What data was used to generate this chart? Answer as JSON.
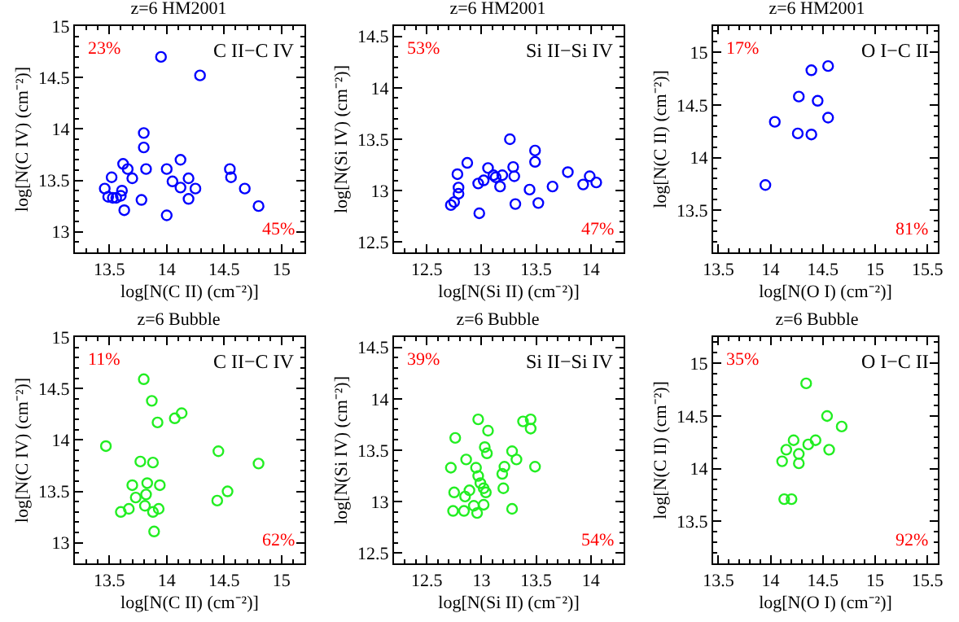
{
  "chart_data": [
    {
      "type": "scatter",
      "title": "z=6 HM2001",
      "xlabel": "log[N(C II) (cm⁻²)]",
      "ylabel": "log[N(C IV) (cm⁻²)]",
      "annotations": [
        "23%",
        "C II−C IV",
        "45%"
      ],
      "xlim": [
        13.2,
        15.2
      ],
      "ylim": [
        12.8,
        15
      ],
      "xticks": [
        13.5,
        14,
        14.5,
        15
      ],
      "yticks": [
        13,
        13.5,
        14,
        14.5,
        15
      ],
      "marker": "circle",
      "series": [
        {
          "color": "#0000ff",
          "x": [
            13.46,
            13.49,
            13.52,
            13.53,
            13.56,
            13.6,
            13.61,
            13.62,
            13.63,
            13.66,
            13.7,
            13.78,
            13.8,
            13.8,
            13.82,
            13.95,
            14.0,
            14.0,
            14.05,
            14.12,
            14.12,
            14.19,
            14.19,
            14.25,
            14.29,
            14.55,
            14.56,
            14.68,
            14.8
          ],
          "values": [
            13.42,
            13.34,
            13.53,
            13.33,
            13.33,
            13.35,
            13.4,
            13.66,
            13.21,
            13.61,
            13.52,
            13.31,
            13.96,
            13.82,
            13.61,
            14.7,
            13.61,
            13.16,
            13.49,
            13.7,
            13.43,
            13.52,
            13.32,
            13.42,
            14.52,
            13.61,
            13.53,
            13.42,
            13.25
          ]
        }
      ]
    },
    {
      "type": "scatter",
      "title": "z=6 HM2001",
      "xlabel": "log[N(Si II) (cm⁻²)]",
      "ylabel": "log[N(Si IV) (cm⁻²)]",
      "annotations": [
        "53%",
        "Si II−Si IV",
        "47%"
      ],
      "xlim": [
        12.2,
        14.3
      ],
      "ylim": [
        12.4,
        14.6
      ],
      "xticks": [
        12.5,
        13,
        13.5,
        14
      ],
      "yticks": [
        12.5,
        13,
        13.5,
        14,
        14.5
      ],
      "marker": "circle",
      "series": [
        {
          "color": "#0000ff",
          "x": [
            12.72,
            12.75,
            12.78,
            12.79,
            12.79,
            12.87,
            12.97,
            12.98,
            13.02,
            13.06,
            13.11,
            13.13,
            13.17,
            13.19,
            13.26,
            13.29,
            13.3,
            13.31,
            13.44,
            13.49,
            13.49,
            13.52,
            13.65,
            13.79,
            13.93,
            13.99,
            14.05
          ],
          "values": [
            12.86,
            12.89,
            13.16,
            13.03,
            12.97,
            13.27,
            13.07,
            12.78,
            13.1,
            13.22,
            13.15,
            13.13,
            13.04,
            13.15,
            13.5,
            13.23,
            13.14,
            12.87,
            13.01,
            13.39,
            13.28,
            12.88,
            13.04,
            13.18,
            13.06,
            13.14,
            13.08
          ]
        }
      ]
    },
    {
      "type": "scatter",
      "title": "z=6 HM2001",
      "xlabel": "log[N(O I) (cm⁻²)]",
      "ylabel": "log[N(C II) (cm⁻²)]",
      "annotations": [
        "17%",
        "O I−C II",
        "81%"
      ],
      "xlim": [
        13.45,
        15.6
      ],
      "ylim": [
        13.1,
        15.25
      ],
      "xticks": [
        13.5,
        14,
        14.5,
        15,
        15.5
      ],
      "yticks": [
        13.5,
        14,
        14.5,
        15
      ],
      "marker": "circle",
      "series": [
        {
          "color": "#0000ff",
          "x": [
            13.95,
            14.04,
            14.26,
            14.27,
            14.39,
            14.39,
            14.45,
            14.55,
            14.55
          ],
          "values": [
            13.74,
            14.34,
            14.23,
            14.58,
            14.83,
            14.22,
            14.54,
            14.87,
            14.38
          ]
        }
      ]
    },
    {
      "type": "scatter",
      "title": "z=6 Bubble",
      "xlabel": "log[N(C II) (cm⁻²)]",
      "ylabel": "log[N(C IV) (cm⁻²)]",
      "annotations": [
        "11%",
        "C II−C IV",
        "62%"
      ],
      "xlim": [
        13.2,
        15.2
      ],
      "ylim": [
        12.8,
        15
      ],
      "xticks": [
        13.5,
        14,
        14.5,
        15
      ],
      "yticks": [
        13,
        13.5,
        14,
        14.5,
        15
      ],
      "marker": "circle",
      "series": [
        {
          "color": "#22ee22",
          "x": [
            13.47,
            13.6,
            13.67,
            13.7,
            13.73,
            13.77,
            13.8,
            13.81,
            13.82,
            13.83,
            13.87,
            13.88,
            13.88,
            13.89,
            13.92,
            13.93,
            13.94,
            14.07,
            14.13,
            14.44,
            14.45,
            14.53,
            14.8
          ],
          "values": [
            13.94,
            13.3,
            13.33,
            13.56,
            13.44,
            13.79,
            14.59,
            13.36,
            13.47,
            13.58,
            14.38,
            13.3,
            13.78,
            13.11,
            14.17,
            13.33,
            13.56,
            14.21,
            14.26,
            13.41,
            13.89,
            13.5,
            13.77
          ]
        }
      ]
    },
    {
      "type": "scatter",
      "title": "z=6 Bubble",
      "xlabel": "log[N(Si II) (cm⁻²)]",
      "ylabel": "log[N(Si IV) (cm⁻²)]",
      "annotations": [
        "39%",
        "Si II−Si IV",
        "54%"
      ],
      "xlim": [
        12.2,
        14.3
      ],
      "ylim": [
        12.4,
        14.6
      ],
      "xticks": [
        12.5,
        13,
        13.5,
        14
      ],
      "yticks": [
        12.5,
        13,
        13.5,
        14,
        14.5
      ],
      "marker": "circle",
      "series": [
        {
          "color": "#22ee22",
          "x": [
            12.72,
            12.74,
            12.75,
            12.76,
            12.84,
            12.85,
            12.86,
            12.89,
            12.93,
            12.95,
            12.96,
            12.97,
            12.97,
            12.99,
            13.02,
            13.02,
            13.03,
            13.04,
            13.05,
            13.06,
            13.19,
            13.2,
            13.21,
            13.28,
            13.28,
            13.32,
            13.38,
            13.45,
            13.45,
            13.49
          ],
          "values": [
            13.33,
            12.91,
            13.09,
            13.62,
            12.91,
            13.05,
            13.41,
            13.11,
            12.96,
            13.33,
            12.89,
            13.8,
            13.25,
            13.18,
            13.13,
            12.97,
            13.53,
            13.09,
            13.47,
            13.69,
            13.27,
            13.13,
            13.34,
            13.49,
            12.93,
            13.41,
            13.78,
            13.8,
            13.71,
            13.34
          ]
        }
      ]
    },
    {
      "type": "scatter",
      "title": "z=6 Bubble",
      "xlabel": "log[N(O I) (cm⁻²)]",
      "ylabel": "log[N(C II) (cm⁻²)]",
      "annotations": [
        "35%",
        "O I−C II",
        "92%"
      ],
      "xlim": [
        13.45,
        15.6
      ],
      "ylim": [
        13.1,
        15.25
      ],
      "xticks": [
        13.5,
        14,
        14.5,
        15,
        15.5
      ],
      "yticks": [
        13.5,
        14,
        14.5,
        15
      ],
      "marker": "circle",
      "series": [
        {
          "color": "#22ee22",
          "x": [
            14.11,
            14.13,
            14.15,
            14.2,
            14.22,
            14.27,
            14.27,
            14.34,
            14.36,
            14.43,
            14.54,
            14.56,
            14.68
          ],
          "values": [
            14.07,
            13.71,
            14.18,
            13.71,
            14.27,
            14.14,
            14.05,
            14.81,
            14.23,
            14.27,
            14.5,
            14.18,
            14.4
          ]
        }
      ]
    }
  ]
}
